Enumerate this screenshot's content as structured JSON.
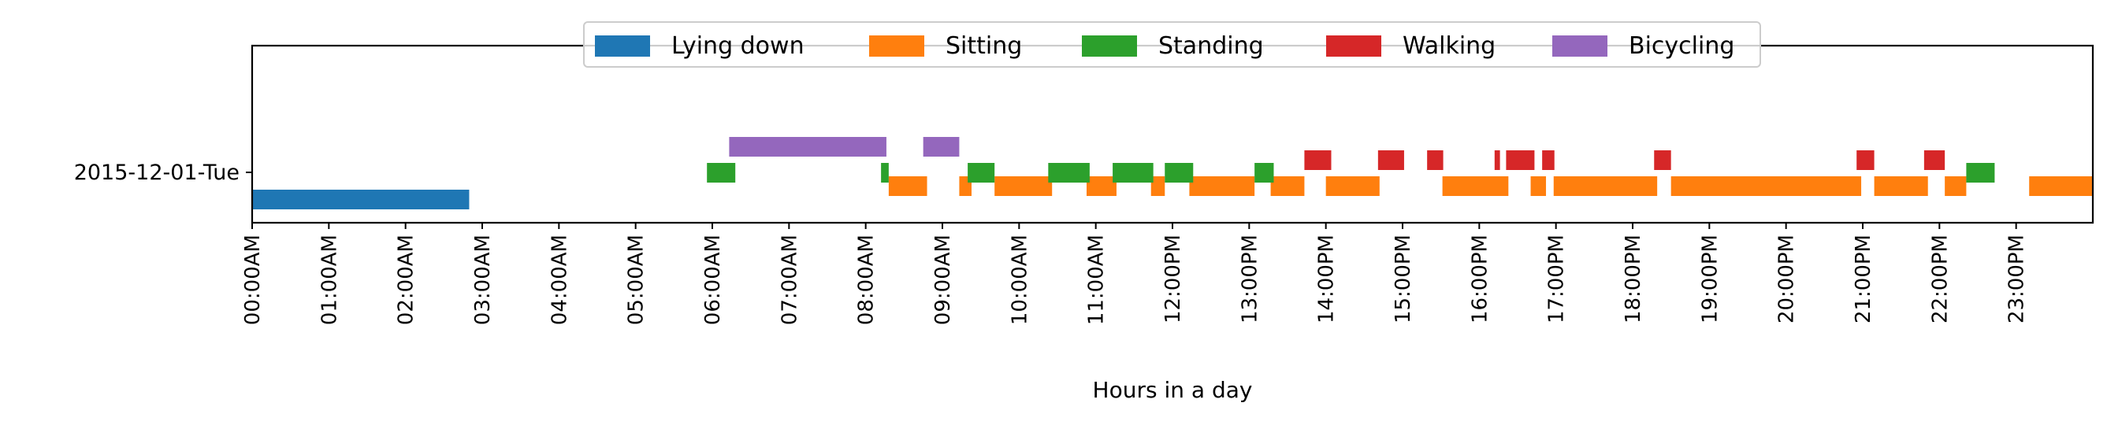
{
  "chart_data": {
    "type": "timeline",
    "xlabel": "Hours in a day",
    "ylabel": "",
    "xlim": [
      0,
      24
    ],
    "row_label": "2015-12-01-Tue",
    "x_ticks": [
      {
        "value": 0,
        "label": "00:00AM"
      },
      {
        "value": 1,
        "label": "01:00AM"
      },
      {
        "value": 2,
        "label": "02:00AM"
      },
      {
        "value": 3,
        "label": "03:00AM"
      },
      {
        "value": 4,
        "label": "04:00AM"
      },
      {
        "value": 5,
        "label": "05:00AM"
      },
      {
        "value": 6,
        "label": "06:00AM"
      },
      {
        "value": 7,
        "label": "07:00AM"
      },
      {
        "value": 8,
        "label": "08:00AM"
      },
      {
        "value": 9,
        "label": "09:00AM"
      },
      {
        "value": 10,
        "label": "10:00AM"
      },
      {
        "value": 11,
        "label": "11:00AM"
      },
      {
        "value": 12,
        "label": "12:00PM"
      },
      {
        "value": 13,
        "label": "13:00PM"
      },
      {
        "value": 14,
        "label": "14:00PM"
      },
      {
        "value": 15,
        "label": "15:00PM"
      },
      {
        "value": 16,
        "label": "16:00PM"
      },
      {
        "value": 17,
        "label": "17:00PM"
      },
      {
        "value": 18,
        "label": "18:00PM"
      },
      {
        "value": 19,
        "label": "19:00PM"
      },
      {
        "value": 20,
        "label": "20:00PM"
      },
      {
        "value": 21,
        "label": "21:00PM"
      },
      {
        "value": 22,
        "label": "22:00PM"
      },
      {
        "value": 23,
        "label": "23:00PM"
      }
    ],
    "legend_position": "top-center",
    "series": [
      {
        "name": "Lying down",
        "color": "#1f77b4",
        "intervals": [
          [
            0.0,
            2.83
          ]
        ]
      },
      {
        "name": "Sitting",
        "color": "#ff7f0e",
        "intervals": [
          [
            8.3,
            8.8
          ],
          [
            9.22,
            9.38
          ],
          [
            9.68,
            10.43
          ],
          [
            10.88,
            11.27
          ],
          [
            11.72,
            11.9
          ],
          [
            12.22,
            13.07
          ],
          [
            13.28,
            13.72
          ],
          [
            14.0,
            14.7
          ],
          [
            15.52,
            16.38
          ],
          [
            16.67,
            16.87
          ],
          [
            16.97,
            18.32
          ],
          [
            18.5,
            20.98
          ],
          [
            21.15,
            21.85
          ],
          [
            22.07,
            22.35
          ],
          [
            23.17,
            24.0
          ]
        ]
      },
      {
        "name": "Standing",
        "color": "#2ca02c",
        "intervals": [
          [
            5.93,
            6.3
          ],
          [
            8.2,
            8.3
          ],
          [
            9.33,
            9.68
          ],
          [
            10.38,
            10.92
          ],
          [
            11.22,
            11.75
          ],
          [
            11.9,
            12.27
          ],
          [
            13.07,
            13.32
          ],
          [
            22.35,
            22.72
          ]
        ]
      },
      {
        "name": "Walking",
        "color": "#d62728",
        "intervals": [
          [
            13.72,
            14.07
          ],
          [
            14.68,
            15.02
          ],
          [
            15.32,
            15.53
          ],
          [
            16.2,
            16.27
          ],
          [
            16.35,
            16.72
          ],
          [
            16.82,
            16.98
          ],
          [
            18.28,
            18.5
          ],
          [
            20.92,
            21.15
          ],
          [
            21.8,
            22.07
          ]
        ]
      },
      {
        "name": "Bicycling",
        "color": "#9467bd",
        "intervals": [
          [
            6.22,
            8.27
          ],
          [
            8.75,
            9.22
          ]
        ]
      }
    ]
  }
}
